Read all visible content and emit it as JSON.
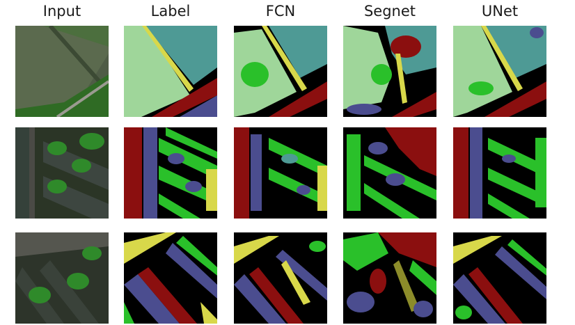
{
  "columns": [
    "Input",
    "Label",
    "FCN",
    "Segnet",
    "UNet"
  ],
  "palette": {
    "background": "#000000",
    "light_green": "#9fd69a",
    "teal": "#4e9a95",
    "yellow": "#d8d84a",
    "dark_red": "#8b0f0f",
    "slate_blue": "#4b4d8f",
    "bright_green": "#2ac02a",
    "olive": "#8c8c2a"
  },
  "rows": [
    {
      "row": 1,
      "scene": "field with road and vegetation"
    },
    {
      "row": 2,
      "scene": "residential buildings with trees"
    },
    {
      "row": 3,
      "scene": "diagonal buildings with trees"
    }
  ]
}
